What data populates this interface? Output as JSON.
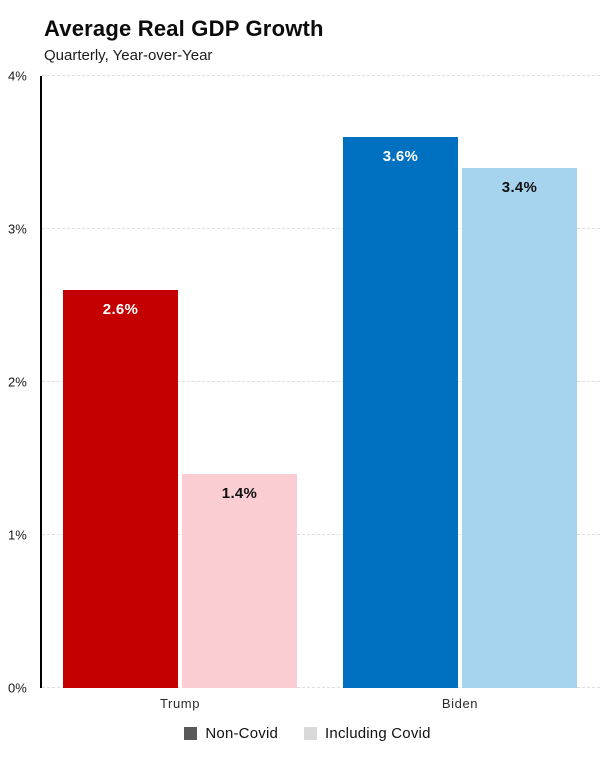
{
  "chart_data": {
    "type": "bar",
    "title": "Average Real GDP Growth",
    "subtitle": "Quarterly, Year-over-Year",
    "categories": [
      "Trump",
      "Biden"
    ],
    "series": [
      {
        "name": "Non-Covid",
        "values": [
          2.6,
          3.6
        ]
      },
      {
        "name": "Including Covid",
        "values": [
          1.4,
          3.4
        ]
      }
    ],
    "value_labels": [
      [
        "2.6%",
        "1.4%"
      ],
      [
        "3.6%",
        "3.4%"
      ]
    ],
    "bar_colors": [
      [
        "#c40000",
        "#f9cdd1"
      ],
      [
        "#0070c0",
        "#a6d4ee"
      ]
    ],
    "value_label_colors": [
      [
        "#ffffff",
        "#111111"
      ],
      [
        "#ffffff",
        "#111111"
      ]
    ],
    "ylim": [
      0,
      4
    ],
    "yticks": [
      "0%",
      "1%",
      "2%",
      "3%",
      "4%"
    ],
    "grid": "horizontal-dashed",
    "legend_position": "bottom",
    "legend_colors": [
      "#595959",
      "#d9d9d9"
    ]
  }
}
